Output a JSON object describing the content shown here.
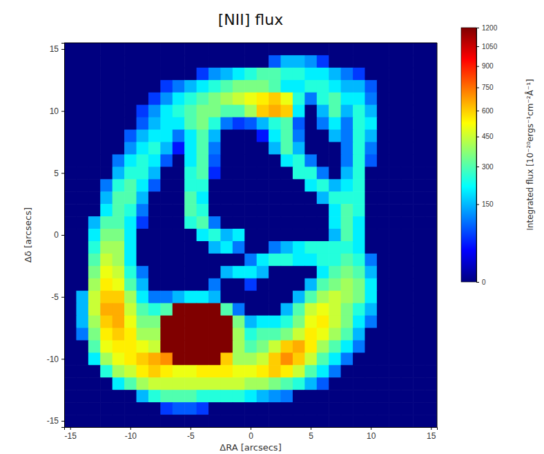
{
  "chart_data": {
    "type": "heatmap",
    "title": "[NII] flux",
    "x_label": "ΔRA [arcsecs]",
    "y_label": "Δδ [arcsecs]",
    "color": "jet",
    "xlim": [
      -15.5,
      15.5
    ],
    "ylim": [
      -15.5,
      15.5
    ],
    "xticks": [
      -15,
      -10,
      -5,
      0,
      5,
      10,
      15
    ],
    "yticks": [
      -15,
      -10,
      -5,
      0,
      5,
      10,
      15
    ],
    "x": [
      -15,
      -14,
      -13,
      -12,
      -11,
      -10,
      -9,
      -8,
      -7,
      -6,
      -5,
      -4,
      -3,
      -2,
      -1,
      0,
      1,
      2,
      3,
      4,
      5,
      6,
      7,
      8,
      9,
      10,
      11,
      12,
      13,
      14,
      15
    ],
    "y": [
      15,
      14,
      13,
      12,
      11,
      10,
      9,
      8,
      7,
      6,
      5,
      4,
      3,
      2,
      1,
      0,
      -1,
      -2,
      -3,
      -4,
      -5,
      -6,
      -7,
      -8,
      -9,
      -10,
      -11,
      -12,
      -13,
      -14,
      -15
    ],
    "values": [
      [
        0,
        0,
        0,
        0,
        0,
        0,
        0,
        0,
        0,
        0,
        0,
        0,
        0,
        0,
        0,
        0,
        0,
        0,
        0,
        0,
        0,
        0,
        0,
        0,
        0,
        0,
        0,
        0,
        0,
        0,
        0
      ],
      [
        0,
        0,
        0,
        0,
        0,
        0,
        0,
        0,
        0,
        0,
        0,
        0,
        0,
        0,
        0,
        0,
        0,
        80,
        150,
        150,
        120,
        60,
        0,
        0,
        0,
        0,
        0,
        0,
        0,
        0,
        0
      ],
      [
        0,
        0,
        0,
        0,
        0,
        0,
        0,
        0,
        0,
        0,
        0,
        60,
        120,
        150,
        200,
        250,
        300,
        300,
        250,
        250,
        200,
        200,
        150,
        100,
        60,
        0,
        0,
        0,
        0,
        0,
        0
      ],
      [
        0,
        0,
        0,
        0,
        0,
        0,
        0,
        0,
        60,
        100,
        150,
        200,
        250,
        300,
        350,
        350,
        350,
        300,
        200,
        200,
        250,
        250,
        200,
        150,
        150,
        80,
        0,
        0,
        0,
        0,
        0
      ],
      [
        0,
        0,
        0,
        0,
        0,
        0,
        0,
        60,
        120,
        200,
        250,
        300,
        350,
        400,
        450,
        500,
        550,
        600,
        500,
        250,
        100,
        250,
        300,
        200,
        200,
        100,
        0,
        0,
        0,
        0,
        0
      ],
      [
        0,
        0,
        0,
        0,
        0,
        0,
        60,
        120,
        200,
        250,
        300,
        350,
        350,
        300,
        300,
        400,
        600,
        650,
        600,
        200,
        0,
        150,
        300,
        150,
        250,
        150,
        0,
        0,
        0,
        0,
        0
      ],
      [
        0,
        0,
        0,
        0,
        0,
        0,
        80,
        150,
        200,
        200,
        300,
        350,
        250,
        100,
        60,
        80,
        150,
        250,
        300,
        80,
        0,
        100,
        200,
        100,
        250,
        200,
        0,
        0,
        0,
        0,
        0
      ],
      [
        0,
        0,
        0,
        0,
        0,
        80,
        150,
        200,
        200,
        100,
        200,
        300,
        150,
        0,
        0,
        0,
        40,
        200,
        300,
        100,
        0,
        0,
        150,
        100,
        250,
        150,
        0,
        0,
        0,
        0,
        0
      ],
      [
        0,
        0,
        0,
        0,
        0,
        120,
        200,
        250,
        150,
        40,
        200,
        300,
        100,
        0,
        0,
        0,
        0,
        150,
        300,
        150,
        0,
        0,
        0,
        100,
        250,
        100,
        0,
        0,
        0,
        0,
        0
      ],
      [
        0,
        0,
        0,
        0,
        100,
        200,
        250,
        200,
        80,
        0,
        200,
        300,
        80,
        0,
        0,
        0,
        0,
        0,
        200,
        250,
        100,
        0,
        0,
        100,
        250,
        80,
        0,
        0,
        0,
        0,
        0
      ],
      [
        0,
        0,
        0,
        0,
        150,
        250,
        250,
        150,
        0,
        0,
        250,
        300,
        50,
        0,
        0,
        0,
        0,
        0,
        0,
        250,
        250,
        100,
        0,
        150,
        250,
        0,
        0,
        0,
        0,
        0,
        0
      ],
      [
        0,
        0,
        0,
        100,
        250,
        300,
        200,
        80,
        0,
        0,
        250,
        250,
        0,
        0,
        0,
        0,
        0,
        0,
        0,
        0,
        200,
        250,
        150,
        200,
        250,
        0,
        0,
        0,
        0,
        0,
        0
      ],
      [
        0,
        0,
        0,
        150,
        300,
        300,
        150,
        0,
        0,
        0,
        300,
        200,
        0,
        0,
        0,
        0,
        0,
        0,
        0,
        0,
        0,
        150,
        250,
        250,
        250,
        0,
        0,
        0,
        0,
        0,
        0
      ],
      [
        0,
        0,
        0,
        200,
        300,
        250,
        100,
        0,
        0,
        0,
        300,
        250,
        0,
        0,
        0,
        0,
        0,
        0,
        0,
        0,
        0,
        0,
        200,
        300,
        250,
        0,
        0,
        0,
        0,
        0,
        0
      ],
      [
        0,
        0,
        150,
        300,
        300,
        200,
        60,
        0,
        0,
        0,
        250,
        300,
        100,
        0,
        0,
        0,
        0,
        0,
        0,
        0,
        0,
        0,
        200,
        300,
        200,
        0,
        0,
        0,
        0,
        0,
        0
      ],
      [
        0,
        0,
        200,
        350,
        350,
        200,
        0,
        0,
        0,
        0,
        0,
        200,
        250,
        150,
        200,
        0,
        0,
        0,
        0,
        0,
        0,
        0,
        150,
        300,
        200,
        0,
        0,
        0,
        0,
        0,
        0
      ],
      [
        0,
        0,
        250,
        400,
        400,
        200,
        0,
        0,
        0,
        0,
        0,
        0,
        150,
        200,
        100,
        0,
        0,
        100,
        150,
        200,
        250,
        250,
        250,
        250,
        200,
        0,
        0,
        0,
        0,
        0,
        0
      ],
      [
        0,
        0,
        300,
        450,
        400,
        200,
        0,
        0,
        0,
        0,
        0,
        0,
        0,
        0,
        0,
        100,
        200,
        250,
        250,
        200,
        200,
        250,
        250,
        300,
        250,
        100,
        0,
        0,
        0,
        0,
        0
      ],
      [
        0,
        0,
        350,
        500,
        450,
        250,
        100,
        0,
        0,
        0,
        0,
        0,
        0,
        150,
        200,
        200,
        150,
        0,
        0,
        0,
        0,
        200,
        300,
        350,
        300,
        150,
        0,
        0,
        0,
        0,
        0
      ],
      [
        0,
        0,
        400,
        550,
        500,
        300,
        150,
        0,
        0,
        0,
        0,
        0,
        100,
        0,
        0,
        60,
        0,
        0,
        0,
        0,
        150,
        300,
        350,
        400,
        350,
        200,
        0,
        0,
        0,
        0,
        0
      ],
      [
        0,
        150,
        450,
        600,
        600,
        400,
        200,
        100,
        100,
        150,
        200,
        200,
        150,
        0,
        0,
        0,
        0,
        0,
        0,
        150,
        300,
        400,
        450,
        400,
        350,
        200,
        0,
        0,
        0,
        0,
        0
      ],
      [
        0,
        150,
        450,
        650,
        650,
        450,
        300,
        250,
        300,
        1200,
        1200,
        1200,
        1200,
        300,
        100,
        0,
        0,
        0,
        150,
        300,
        450,
        500,
        450,
        350,
        250,
        150,
        0,
        0,
        0,
        0,
        0
      ],
      [
        0,
        150,
        400,
        600,
        650,
        500,
        350,
        350,
        1200,
        1200,
        1200,
        1200,
        1200,
        1200,
        350,
        150,
        200,
        200,
        250,
        350,
        500,
        550,
        450,
        350,
        200,
        100,
        0,
        0,
        0,
        0,
        0
      ],
      [
        0,
        100,
        350,
        550,
        600,
        550,
        400,
        400,
        1200,
        1200,
        1200,
        1200,
        1200,
        1200,
        400,
        250,
        300,
        300,
        350,
        450,
        550,
        500,
        400,
        300,
        150,
        0,
        0,
        0,
        0,
        0,
        0
      ],
      [
        0,
        0,
        300,
        500,
        550,
        550,
        500,
        450,
        1200,
        1200,
        1200,
        1200,
        1200,
        1200,
        400,
        300,
        350,
        450,
        600,
        650,
        550,
        400,
        300,
        200,
        100,
        0,
        0,
        0,
        0,
        0,
        0
      ],
      [
        0,
        0,
        200,
        400,
        500,
        550,
        600,
        650,
        700,
        1200,
        1200,
        1200,
        1200,
        600,
        400,
        400,
        450,
        600,
        700,
        600,
        450,
        300,
        200,
        100,
        0,
        0,
        0,
        0,
        0,
        0,
        0
      ],
      [
        0,
        0,
        0,
        250,
        400,
        450,
        550,
        600,
        550,
        500,
        500,
        550,
        550,
        550,
        500,
        500,
        550,
        600,
        550,
        450,
        300,
        200,
        100,
        0,
        0,
        0,
        0,
        0,
        0,
        0,
        0
      ],
      [
        0,
        0,
        0,
        0,
        200,
        300,
        400,
        450,
        450,
        450,
        450,
        450,
        450,
        450,
        450,
        400,
        400,
        350,
        300,
        250,
        150,
        80,
        0,
        0,
        0,
        0,
        0,
        0,
        0,
        0,
        0
      ],
      [
        0,
        0,
        0,
        0,
        0,
        0,
        150,
        250,
        300,
        300,
        300,
        250,
        250,
        250,
        250,
        200,
        150,
        120,
        100,
        0,
        0,
        0,
        0,
        0,
        0,
        0,
        0,
        0,
        0,
        0,
        0
      ],
      [
        0,
        0,
        0,
        0,
        0,
        0,
        0,
        0,
        60,
        80,
        80,
        60,
        0,
        0,
        0,
        0,
        0,
        0,
        0,
        0,
        0,
        0,
        0,
        0,
        0,
        0,
        0,
        0,
        0,
        0,
        0
      ],
      [
        0,
        0,
        0,
        0,
        0,
        0,
        0,
        0,
        0,
        0,
        0,
        0,
        0,
        0,
        0,
        0,
        0,
        0,
        0,
        0,
        0,
        0,
        0,
        0,
        0,
        0,
        0,
        0,
        0,
        0,
        0
      ]
    ],
    "colorbar": {
      "label": "Integrated flux [10⁻²⁰ergs⁻¹cm⁻²Å⁻¹]",
      "range": [
        0,
        1200
      ],
      "ticks": [
        0,
        150,
        300,
        450,
        600,
        750,
        900,
        1050,
        1200
      ]
    }
  }
}
